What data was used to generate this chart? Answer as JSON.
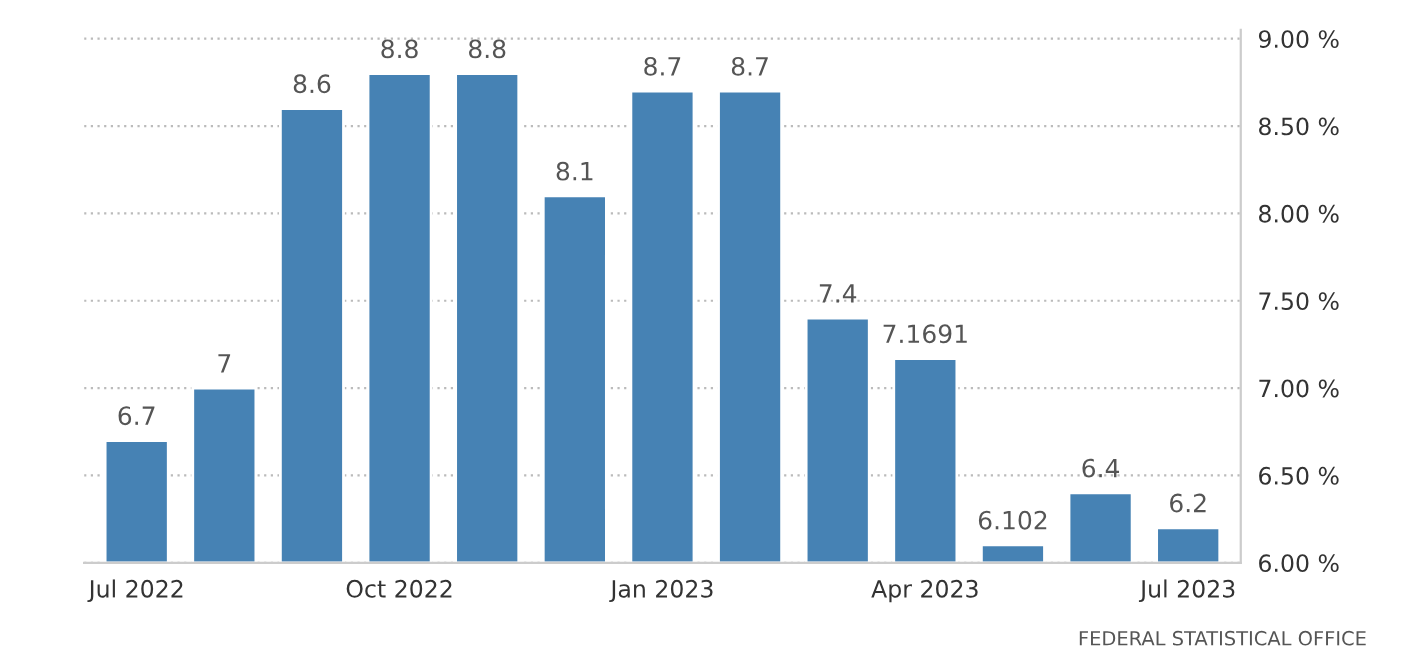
{
  "chart_data": {
    "type": "bar",
    "categories": [
      "Jul 2022",
      null,
      null,
      "Oct 2022",
      null,
      null,
      "Jan 2023",
      null,
      null,
      "Apr 2023",
      null,
      null,
      "Jul 2023"
    ],
    "values": [
      6.7,
      7,
      8.6,
      8.8,
      8.8,
      8.1,
      8.7,
      8.7,
      7.4,
      7.1691,
      6.102,
      6.4,
      6.2
    ],
    "color": "#4682b4",
    "ylim": [
      6,
      9.05
    ],
    "yticks": [
      {
        "value": 6,
        "label": "6.00 %"
      },
      {
        "value": 6.5,
        "label": "6.50 %"
      },
      {
        "value": 7,
        "label": "7.00 %"
      },
      {
        "value": 7.5,
        "label": "7.50 %"
      },
      {
        "value": 8,
        "label": "8.00 %"
      },
      {
        "value": 8.5,
        "label": "8.50 %"
      },
      {
        "value": 9,
        "label": "9.00 %"
      }
    ],
    "grid": "y",
    "data_labels": true,
    "annotations": [
      "FEDERAL STATISTICAL OFFICE"
    ]
  }
}
